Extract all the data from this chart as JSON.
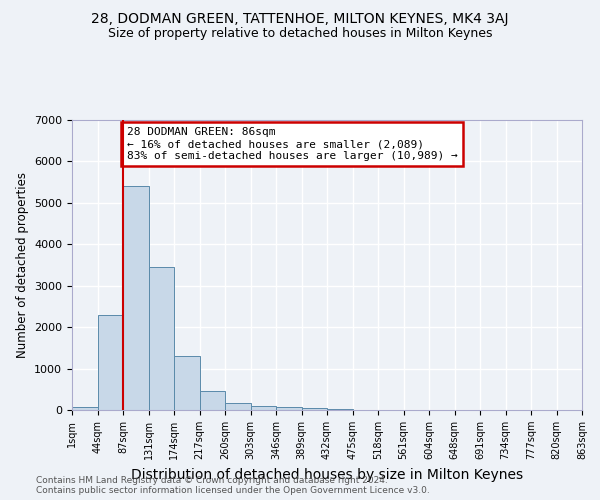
{
  "title1": "28, DODMAN GREEN, TATTENHOE, MILTON KEYNES, MK4 3AJ",
  "title2": "Size of property relative to detached houses in Milton Keynes",
  "xlabel": "Distribution of detached houses by size in Milton Keynes",
  "ylabel": "Number of detached properties",
  "bin_heights": [
    75,
    2300,
    5400,
    3450,
    1300,
    450,
    175,
    100,
    75,
    50,
    30,
    10,
    5,
    3,
    2,
    1,
    1,
    1,
    0,
    0
  ],
  "bar_color": "#c8d8e8",
  "bar_edge_color": "#5a8aaa",
  "red_line_x": 2,
  "annotation_text": "28 DODMAN GREEN: 86sqm\n← 16% of detached houses are smaller (2,089)\n83% of semi-detached houses are larger (10,989) →",
  "annotation_box_color": "#ffffff",
  "annotation_box_edge_color": "#cc0000",
  "red_line_color": "#cc0000",
  "ylim": [
    0,
    7000
  ],
  "yticks": [
    0,
    1000,
    2000,
    3000,
    4000,
    5000,
    6000,
    7000
  ],
  "tick_labels": [
    "1sqm",
    "44sqm",
    "87sqm",
    "131sqm",
    "174sqm",
    "217sqm",
    "260sqm",
    "303sqm",
    "346sqm",
    "389sqm",
    "432sqm",
    "475sqm",
    "518sqm",
    "561sqm",
    "604sqm",
    "648sqm",
    "691sqm",
    "734sqm",
    "777sqm",
    "820sqm",
    "863sqm"
  ],
  "footer": "Contains HM Land Registry data © Crown copyright and database right 2024.\nContains public sector information licensed under the Open Government Licence v3.0.",
  "bg_color": "#eef2f7",
  "grid_color": "#ffffff",
  "title1_fontsize": 10,
  "title2_fontsize": 9,
  "xlabel_fontsize": 10,
  "ylabel_fontsize": 8.5,
  "footer_fontsize": 6.5
}
